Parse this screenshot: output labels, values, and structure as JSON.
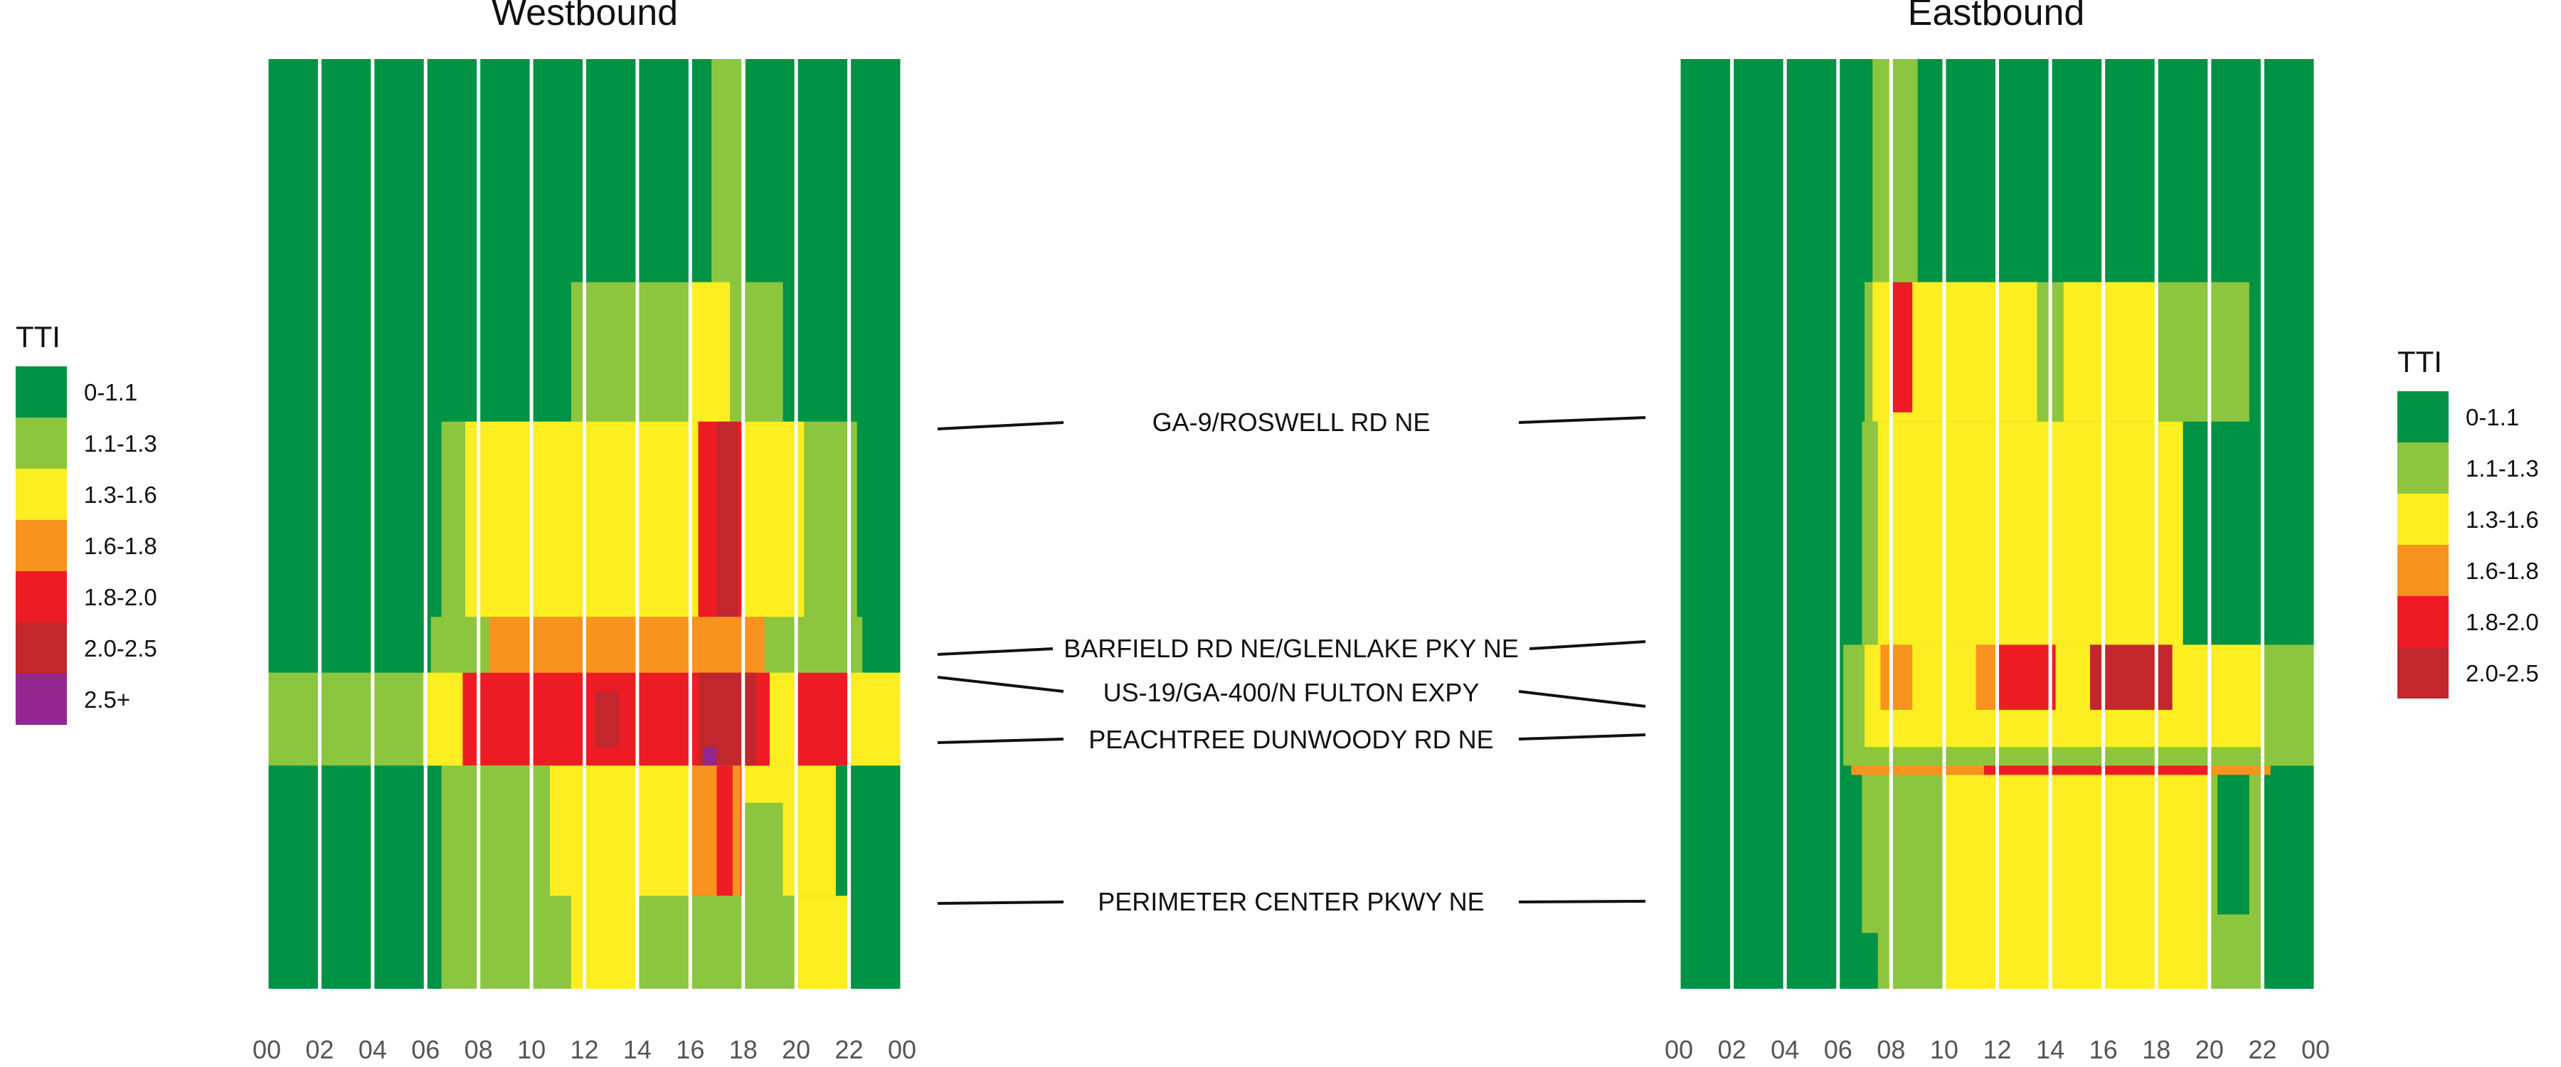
{
  "chart_data": [
    {
      "type": "heatmap",
      "title": "Westbound",
      "x": {
        "ticks": [
          "00",
          "02",
          "04",
          "06",
          "08",
          "10",
          "12",
          "14",
          "16",
          "18",
          "20",
          "22",
          "00"
        ],
        "range": [
          0,
          24
        ]
      },
      "road_labels": [
        "GA-9/ROSWELL RD NE",
        "BARFIELD RD NE/GLENLAKE PKY NE",
        "US-19/GA-400/N FULTON EXPY",
        "PEACHTREE DUNWOODY RD NE",
        "PERIMETER CENTER PKWY NE"
      ],
      "legend_title": "TTI",
      "legend": [
        {
          "label": "0-1.1",
          "color": "#009245"
        },
        {
          "label": "1.1-1.3",
          "color": "#8CC63F"
        },
        {
          "label": "1.3-1.6",
          "color": "#FCEE21"
        },
        {
          "label": "1.6-1.8",
          "color": "#F7931E"
        },
        {
          "label": "1.8-2.0",
          "color": "#ED1C24"
        },
        {
          "label": "2.0-2.5",
          "color": "#C1272D"
        },
        {
          "label": "2.5+",
          "color": "#93278F"
        }
      ],
      "cells": [
        {
          "x": [
            0,
            24
          ],
          "y": [
            0,
            1
          ],
          "tti": "0-1.1"
        },
        {
          "x": [
            16.8,
            18.1
          ],
          "y": [
            0,
            0.24
          ],
          "tti": "1.1-1.3"
        },
        {
          "x": [
            11.5,
            19.5
          ],
          "y": [
            0.24,
            0.39
          ],
          "tti": "1.1-1.3"
        },
        {
          "x": [
            16,
            17.5
          ],
          "y": [
            0.24,
            0.39
          ],
          "tti": "1.3-1.6"
        },
        {
          "x": [
            6.6,
            22.3
          ],
          "y": [
            0.39,
            1
          ],
          "tti": "1.1-1.3"
        },
        {
          "x": [
            7.5,
            20.3
          ],
          "y": [
            0.39,
            0.8
          ],
          "tti": "1.3-1.6"
        },
        {
          "x": [
            16.3,
            18
          ],
          "y": [
            0.39,
            0.9
          ],
          "tti": "1.8-2.0"
        },
        {
          "x": [
            17,
            17.8
          ],
          "y": [
            0.39,
            0.9
          ],
          "tti": "2.0-2.5"
        },
        {
          "x": [
            6.2,
            22.5
          ],
          "y": [
            0.6,
            0.66
          ],
          "tti": "1.1-1.3"
        },
        {
          "x": [
            8.4,
            18.8
          ],
          "y": [
            0.6,
            0.66
          ],
          "tti": "1.6-1.8"
        },
        {
          "x": [
            0,
            24
          ],
          "y": [
            0.66,
            0.76
          ],
          "tti": "1.1-1.3"
        },
        {
          "x": [
            5.9,
            24
          ],
          "y": [
            0.66,
            0.76
          ],
          "tti": "1.3-1.6"
        },
        {
          "x": [
            7.4,
            19
          ],
          "y": [
            0.66,
            0.76
          ],
          "tti": "1.8-2.0"
        },
        {
          "x": [
            20,
            22
          ],
          "y": [
            0.66,
            0.76
          ],
          "tti": "1.8-2.0"
        },
        {
          "x": [
            12.4,
            13.3
          ],
          "y": [
            0.68,
            0.74
          ],
          "tti": "2.0-2.5"
        },
        {
          "x": [
            16.3,
            18.5
          ],
          "y": [
            0.66,
            0.76
          ],
          "tti": "2.0-2.5"
        },
        {
          "x": [
            16.5,
            17
          ],
          "y": [
            0.74,
            0.76
          ],
          "tti": "2.5+"
        },
        {
          "x": [
            0,
            1
          ],
          "y": [
            0.76,
            1
          ],
          "tti": "0-1.1"
        },
        {
          "x": [
            7.5,
            10.7
          ],
          "y": [
            0.76,
            0.9
          ],
          "tti": "1.1-1.3"
        },
        {
          "x": [
            10.7,
            16
          ],
          "y": [
            0.76,
            1
          ],
          "tti": "1.3-1.6"
        },
        {
          "x": [
            16,
            17.9
          ],
          "y": [
            0.76,
            0.9
          ],
          "tti": "1.6-1.8"
        },
        {
          "x": [
            17,
            17.6
          ],
          "y": [
            0.76,
            0.9
          ],
          "tti": "1.8-2.0"
        },
        {
          "x": [
            19.5,
            22
          ],
          "y": [
            0.76,
            0.9
          ],
          "tti": "1.3-1.6"
        },
        {
          "x": [
            21.5,
            22.5
          ],
          "y": [
            0.76,
            1
          ],
          "tti": "0-1.1"
        },
        {
          "x": [
            10,
            11.5
          ],
          "y": [
            0.9,
            1
          ],
          "tti": "1.1-1.3"
        },
        {
          "x": [
            14,
            20
          ],
          "y": [
            0.9,
            1
          ],
          "tti": "1.1-1.3"
        },
        {
          "x": [
            20,
            22
          ],
          "y": [
            0.9,
            1
          ],
          "tti": "1.3-1.6"
        },
        {
          "x": [
            22.5,
            24
          ],
          "y": [
            0.76,
            1
          ],
          "tti": "0-1.1"
        }
      ]
    },
    {
      "type": "heatmap",
      "title": "Eastbound",
      "x": {
        "ticks": [
          "00",
          "02",
          "04",
          "06",
          "08",
          "10",
          "12",
          "14",
          "16",
          "18",
          "20",
          "22",
          "00"
        ],
        "range": [
          0,
          24
        ]
      },
      "legend_title": "TTI",
      "legend": [
        {
          "label": "0-1.1",
          "color": "#009245"
        },
        {
          "label": "1.1-1.3",
          "color": "#8CC63F"
        },
        {
          "label": "1.3-1.6",
          "color": "#FCEE21"
        },
        {
          "label": "1.6-1.8",
          "color": "#F7931E"
        },
        {
          "label": "1.8-2.0",
          "color": "#ED1C24"
        },
        {
          "label": "2.0-2.5",
          "color": "#C1272D"
        }
      ],
      "cells": [
        {
          "x": [
            0,
            24
          ],
          "y": [
            0,
            1
          ],
          "tti": "0-1.1"
        },
        {
          "x": [
            7.3,
            9
          ],
          "y": [
            0,
            0.24
          ],
          "tti": "1.1-1.3"
        },
        {
          "x": [
            7,
            21.5
          ],
          "y": [
            0.24,
            0.39
          ],
          "tti": "1.1-1.3"
        },
        {
          "x": [
            7.3,
            13.5
          ],
          "y": [
            0.24,
            0.39
          ],
          "tti": "1.3-1.6"
        },
        {
          "x": [
            14.5,
            18
          ],
          "y": [
            0.24,
            0.39
          ],
          "tti": "1.3-1.6"
        },
        {
          "x": [
            8,
            8.8
          ],
          "y": [
            0.24,
            0.38
          ],
          "tti": "1.8-2.0"
        },
        {
          "x": [
            6.9,
            19
          ],
          "y": [
            0.39,
            0.94
          ],
          "tti": "1.1-1.3"
        },
        {
          "x": [
            7.5,
            19
          ],
          "y": [
            0.39,
            0.63
          ],
          "tti": "1.3-1.6"
        },
        {
          "x": [
            6.2,
            24
          ],
          "y": [
            0.63,
            0.76
          ],
          "tti": "1.1-1.3"
        },
        {
          "x": [
            7,
            22
          ],
          "y": [
            0.63,
            0.76
          ],
          "tti": "1.3-1.6"
        },
        {
          "x": [
            7.6,
            8.8
          ],
          "y": [
            0.63,
            0.7
          ],
          "tti": "1.6-1.8"
        },
        {
          "x": [
            11.2,
            12
          ],
          "y": [
            0.63,
            0.7
          ],
          "tti": "1.6-1.8"
        },
        {
          "x": [
            12,
            14.2
          ],
          "y": [
            0.63,
            0.7
          ],
          "tti": "1.8-2.0"
        },
        {
          "x": [
            15.5,
            18.6
          ],
          "y": [
            0.63,
            0.7
          ],
          "tti": "2.0-2.5"
        },
        {
          "x": [
            6.5,
            24
          ],
          "y": [
            0.74,
            0.76
          ],
          "tti": "1.1-1.3"
        },
        {
          "x": [
            6.5,
            22.3
          ],
          "y": [
            0.76,
            0.77
          ],
          "tti": "1.6-1.8"
        },
        {
          "x": [
            11.5,
            20
          ],
          "y": [
            0.76,
            0.77
          ],
          "tti": "1.8-2.0"
        },
        {
          "x": [
            7.5,
            10
          ],
          "y": [
            0.77,
            1
          ],
          "tti": "1.1-1.3"
        },
        {
          "x": [
            10,
            20.5
          ],
          "y": [
            0.77,
            1
          ],
          "tti": "1.3-1.6"
        },
        {
          "x": [
            20,
            22
          ],
          "y": [
            0.77,
            1
          ],
          "tti": "1.1-1.3"
        },
        {
          "x": [
            20.3,
            21.5
          ],
          "y": [
            0.77,
            0.92
          ],
          "tti": "0-1.1"
        }
      ]
    }
  ]
}
